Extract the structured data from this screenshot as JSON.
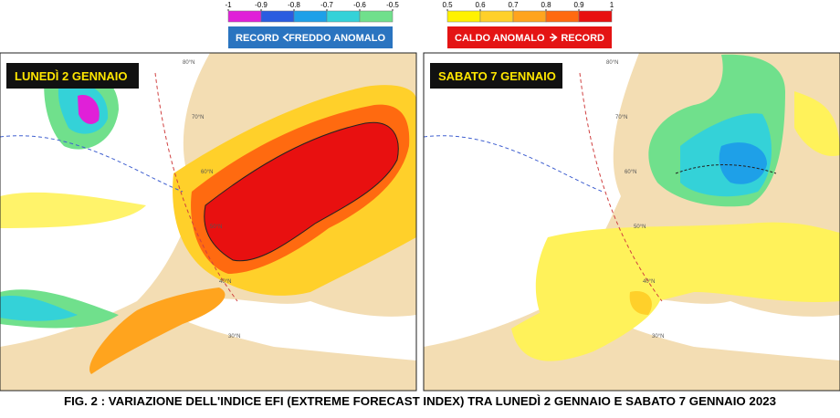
{
  "legends": [
    {
      "ticks": [
        -1,
        -0.9,
        -0.8,
        -0.7,
        -0.6,
        -0.5
      ],
      "colors": [
        "#e020d8",
        "#2a5ce0",
        "#1ea0e8",
        "#34d2d8",
        "#70e08c"
      ],
      "label_left": "RECORD",
      "label_right": "FREDDO ANOMALO",
      "box_color": "#2a74c0"
    },
    {
      "ticks": [
        0.5,
        0.6,
        0.7,
        0.8,
        0.9,
        1
      ],
      "colors": [
        "#fff200",
        "#ffd02a",
        "#ffa41e",
        "#ff6a10",
        "#e81010"
      ],
      "label_left": "CALDO ANOMALO",
      "label_right": "RECORD",
      "box_color": "#e41414"
    }
  ],
  "panels": [
    {
      "title": "LUNEDÌ 2 GENNAIO",
      "lat_labels": [
        "80°N",
        "70°N",
        "60°N",
        "50°N",
        "40°N",
        "30°N"
      ]
    },
    {
      "title": "SABATO 7 GENNAIO",
      "lat_labels": [
        "80°N",
        "70°N",
        "60°N",
        "50°N",
        "40°N",
        "30°N"
      ]
    }
  ],
  "caption": "FIG. 2 : VARIAZIONE DELL'INDICE EFI (EXTREME FORECAST INDEX) TRA LUNEDÌ 2 GENNAIO E SABATO 7 GENNAIO 2023"
}
